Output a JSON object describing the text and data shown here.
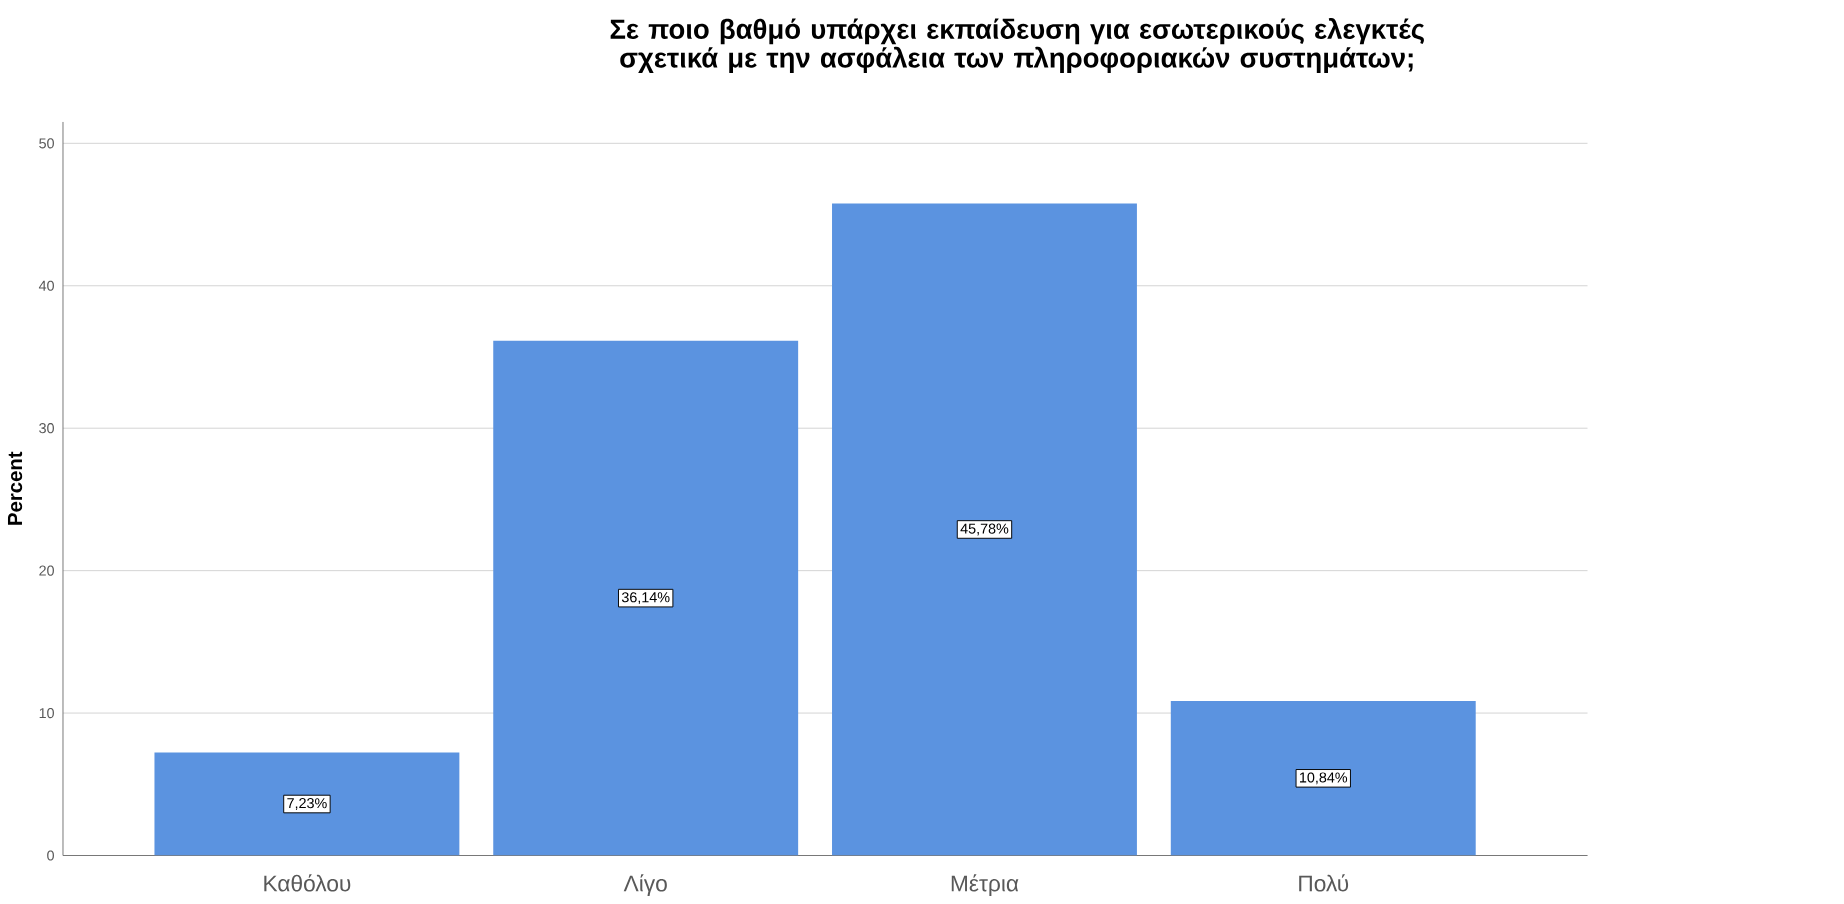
{
  "chart_data": {
    "type": "bar",
    "title": "Σε ποιο βαθμό υπάρχει εκπαίδευση για εσωτερικούς ελεγκτές σχετικά με την ασφάλεια των πληροφοριακών συστημάτων;",
    "ylabel": "Percent",
    "categories": [
      "Καθόλου",
      "Λίγο",
      "Μέτρια",
      "Πολύ"
    ],
    "values": [
      7.23,
      36.14,
      45.78,
      10.84
    ],
    "value_labels": [
      "7,23%",
      "36,14%",
      "45,78%",
      "10,84%"
    ],
    "color": "#5b93e0",
    "ylim": [
      0,
      51.5
    ],
    "yticks": [
      0,
      10,
      20,
      30,
      40,
      50
    ],
    "grid": "y"
  }
}
